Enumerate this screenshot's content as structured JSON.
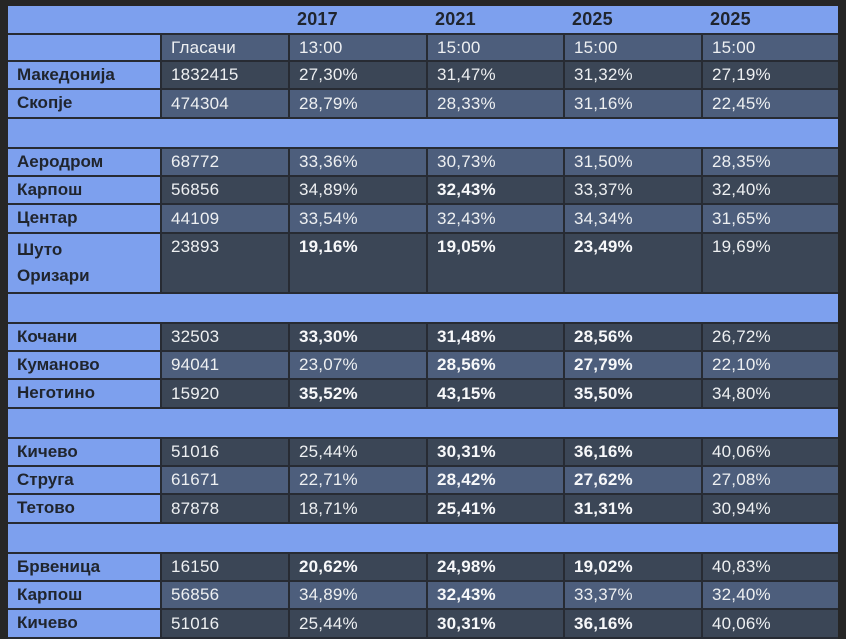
{
  "colors": {
    "spacer_blue": "#7da0ee",
    "row_dark": "#3b4656",
    "row_light": "#4d5e7c",
    "frame_background": "#262626",
    "grid_line": "#272b33",
    "text_light": "#eef0f2",
    "text_dark": "#20252e"
  },
  "table": {
    "years": [
      "2017",
      "2021",
      "2025",
      "2025"
    ],
    "subheader": {
      "voters_label": "Гласачи",
      "times": [
        "13:00",
        "15:00",
        "15:00",
        "15:00"
      ]
    },
    "rows": [
      {
        "kind": "data",
        "shade": "dark",
        "label": "Македонија",
        "voters": "1832415",
        "cells": [
          {
            "text": "27,30%",
            "bold": false
          },
          {
            "text": "31,47%",
            "bold": false
          },
          {
            "text": "31,32%",
            "bold": false
          },
          {
            "text": "27,19%",
            "bold": false
          }
        ]
      },
      {
        "kind": "data",
        "shade": "light",
        "label": "Скопје",
        "voters": "474304",
        "cells": [
          {
            "text": "28,79%",
            "bold": false
          },
          {
            "text": "28,33%",
            "bold": false
          },
          {
            "text": "31,16%",
            "bold": false
          },
          {
            "text": "22,45%",
            "bold": false
          }
        ]
      },
      {
        "kind": "spacer"
      },
      {
        "kind": "data",
        "shade": "light",
        "label": "Аеродром",
        "voters": "68772",
        "cells": [
          {
            "text": "33,36%",
            "bold": false
          },
          {
            "text": "30,73%",
            "bold": false
          },
          {
            "text": "31,50%",
            "bold": false
          },
          {
            "text": "28,35%",
            "bold": false
          }
        ]
      },
      {
        "kind": "data",
        "shade": "dark",
        "label": "Карпош",
        "voters": "56856",
        "cells": [
          {
            "text": "34,89%",
            "bold": false
          },
          {
            "text": "32,43%",
            "bold": true
          },
          {
            "text": "33,37%",
            "bold": false
          },
          {
            "text": "32,40%",
            "bold": false
          }
        ]
      },
      {
        "kind": "data",
        "shade": "light",
        "label": "Центар",
        "voters": "44109",
        "cells": [
          {
            "text": "33,54%",
            "bold": false
          },
          {
            "text": "32,43%",
            "bold": false
          },
          {
            "text": "34,34%",
            "bold": false
          },
          {
            "text": "31,65%",
            "bold": false
          }
        ]
      },
      {
        "kind": "data",
        "shade": "dark",
        "tall": true,
        "label": "Шуто Оризари",
        "voters": "23893",
        "cells": [
          {
            "text": "19,16%",
            "bold": true
          },
          {
            "text": "19,05%",
            "bold": true
          },
          {
            "text": "23,49%",
            "bold": true
          },
          {
            "text": "19,69%",
            "bold": false
          }
        ]
      },
      {
        "kind": "spacer"
      },
      {
        "kind": "data",
        "shade": "dark",
        "label": "Кочани",
        "voters": "32503",
        "cells": [
          {
            "text": "33,30%",
            "bold": true
          },
          {
            "text": "31,48%",
            "bold": true
          },
          {
            "text": "28,56%",
            "bold": true
          },
          {
            "text": "26,72%",
            "bold": false
          }
        ]
      },
      {
        "kind": "data",
        "shade": "light",
        "label": "Куманово",
        "voters": "94041",
        "cells": [
          {
            "text": "23,07%",
            "bold": false
          },
          {
            "text": "28,56%",
            "bold": true
          },
          {
            "text": "27,79%",
            "bold": true
          },
          {
            "text": "22,10%",
            "bold": false
          }
        ]
      },
      {
        "kind": "data",
        "shade": "dark",
        "label": "Неготино",
        "voters": "15920",
        "cells": [
          {
            "text": "35,52%",
            "bold": true
          },
          {
            "text": "43,15%",
            "bold": true
          },
          {
            "text": "35,50%",
            "bold": true
          },
          {
            "text": "34,80%",
            "bold": false
          }
        ]
      },
      {
        "kind": "spacer"
      },
      {
        "kind": "data",
        "shade": "dark",
        "label": "Кичево",
        "voters": "51016",
        "cells": [
          {
            "text": "25,44%",
            "bold": false
          },
          {
            "text": "30,31%",
            "bold": true
          },
          {
            "text": "36,16%",
            "bold": true
          },
          {
            "text": "40,06%",
            "bold": false
          }
        ]
      },
      {
        "kind": "data",
        "shade": "light",
        "label": "Струга",
        "voters": "61671",
        "cells": [
          {
            "text": "22,71%",
            "bold": false
          },
          {
            "text": "28,42%",
            "bold": true
          },
          {
            "text": "27,62%",
            "bold": true
          },
          {
            "text": "27,08%",
            "bold": false
          }
        ]
      },
      {
        "kind": "data",
        "shade": "dark",
        "label": "Тетово",
        "voters": "87878",
        "cells": [
          {
            "text": "18,71%",
            "bold": false
          },
          {
            "text": "25,41%",
            "bold": true
          },
          {
            "text": "31,31%",
            "bold": true
          },
          {
            "text": "30,94%",
            "bold": false
          }
        ]
      },
      {
        "kind": "spacer"
      },
      {
        "kind": "data",
        "shade": "dark",
        "label": "Брвеница",
        "voters": "16150",
        "cells": [
          {
            "text": "20,62%",
            "bold": true
          },
          {
            "text": "24,98%",
            "bold": true
          },
          {
            "text": "19,02%",
            "bold": true
          },
          {
            "text": "40,83%",
            "bold": false
          }
        ]
      },
      {
        "kind": "data",
        "shade": "light",
        "label": "Карпош",
        "voters": "56856",
        "cells": [
          {
            "text": "34,89%",
            "bold": false
          },
          {
            "text": "32,43%",
            "bold": true
          },
          {
            "text": "33,37%",
            "bold": false
          },
          {
            "text": "32,40%",
            "bold": false
          }
        ]
      },
      {
        "kind": "data",
        "shade": "dark",
        "label": "Кичево",
        "voters": "51016",
        "cells": [
          {
            "text": "25,44%",
            "bold": false
          },
          {
            "text": "30,31%",
            "bold": true
          },
          {
            "text": "36,16%",
            "bold": true
          },
          {
            "text": "40,06%",
            "bold": false
          }
        ]
      }
    ]
  },
  "chart_data": {
    "type": "table",
    "title": "",
    "columns": [
      "",
      "Гласачи",
      "2017 13:00",
      "2021 15:00",
      "2025 15:00",
      "2025 15:00"
    ],
    "rows": [
      [
        "Македонија",
        "1832415",
        "27,30%",
        "31,47%",
        "31,32%",
        "27,19%"
      ],
      [
        "Скопје",
        "474304",
        "28,79%",
        "28,33%",
        "31,16%",
        "22,45%"
      ],
      [
        "Аеродром",
        "68772",
        "33,36%",
        "30,73%",
        "31,50%",
        "28,35%"
      ],
      [
        "Карпош",
        "56856",
        "34,89%",
        "32,43%",
        "33,37%",
        "32,40%"
      ],
      [
        "Центар",
        "44109",
        "33,54%",
        "32,43%",
        "34,34%",
        "31,65%"
      ],
      [
        "Шуто Оризари",
        "23893",
        "19,16%",
        "19,05%",
        "23,49%",
        "19,69%"
      ],
      [
        "Кочани",
        "32503",
        "33,30%",
        "31,48%",
        "28,56%",
        "26,72%"
      ],
      [
        "Куманово",
        "94041",
        "23,07%",
        "28,56%",
        "27,79%",
        "22,10%"
      ],
      [
        "Неготино",
        "15920",
        "35,52%",
        "43,15%",
        "35,50%",
        "34,80%"
      ],
      [
        "Кичево",
        "51016",
        "25,44%",
        "30,31%",
        "36,16%",
        "40,06%"
      ],
      [
        "Струга",
        "61671",
        "22,71%",
        "28,42%",
        "27,62%",
        "27,08%"
      ],
      [
        "Тетово",
        "87878",
        "18,71%",
        "25,41%",
        "31,31%",
        "30,94%"
      ],
      [
        "Брвеница",
        "16150",
        "20,62%",
        "24,98%",
        "19,02%",
        "40,83%"
      ],
      [
        "Карпош",
        "56856",
        "34,89%",
        "32,43%",
        "33,37%",
        "32,40%"
      ],
      [
        "Кичево",
        "51016",
        "25,44%",
        "30,31%",
        "36,16%",
        "40,06%"
      ]
    ]
  }
}
